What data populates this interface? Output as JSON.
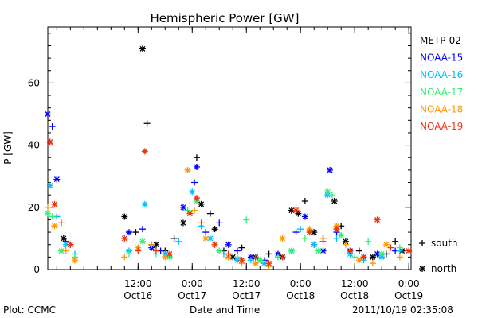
{
  "page": {
    "footer_left": "Plot: CCMC",
    "footer_center": "Date and Time",
    "footer_right": "2011/10/19 02:35:08"
  },
  "chart_data": {
    "type": "scatter",
    "title": "Hemispheric Power [GW]",
    "ylabel": "P [GW]",
    "xlabel": "Date and Time",
    "xlim": [
      "2011-10-15T16:00",
      "2011-10-19T00:30"
    ],
    "ylim": [
      0,
      78
    ],
    "yticks": [
      0,
      20,
      40,
      60
    ],
    "xticks": [
      {
        "t": "2011-10-16T12:00",
        "time": "12:00",
        "date": "Oct16"
      },
      {
        "t": "2011-10-17T00:00",
        "time": "0:00",
        "date": "Oct17"
      },
      {
        "t": "2011-10-17T12:00",
        "time": "12:00",
        "date": "Oct17"
      },
      {
        "t": "2011-10-18T00:00",
        "time": "0:00",
        "date": "Oct18"
      },
      {
        "t": "2011-10-18T12:00",
        "time": "12:00",
        "date": "Oct18"
      },
      {
        "t": "2011-10-19T00:00",
        "time": "0:00",
        "date": "Oct19"
      }
    ],
    "markers": [
      {
        "symbol": "+",
        "label": "south"
      },
      {
        "symbol": "*",
        "label": "north"
      }
    ],
    "series": [
      {
        "name": "METP-02",
        "color": "#000000",
        "points": [
          [
            "2011-10-15T16:30",
            41,
            "n"
          ],
          [
            "2011-10-15T18:00",
            17,
            "+"
          ],
          [
            "2011-10-15T19:30",
            10,
            "n"
          ],
          [
            "2011-10-15T21:00",
            8,
            "+"
          ],
          [
            "2011-10-16T09:00",
            17,
            "n"
          ],
          [
            "2011-10-16T11:30",
            12,
            "+"
          ],
          [
            "2011-10-16T13:00",
            71,
            "n"
          ],
          [
            "2011-10-16T14:00",
            47,
            "+"
          ],
          [
            "2011-10-16T16:00",
            8,
            "n"
          ],
          [
            "2011-10-16T18:00",
            6,
            "+"
          ],
          [
            "2011-10-16T20:00",
            10,
            "+"
          ],
          [
            "2011-10-16T22:00",
            15,
            "n"
          ],
          [
            "2011-10-17T01:00",
            36,
            "+"
          ],
          [
            "2011-10-17T02:00",
            21,
            "n"
          ],
          [
            "2011-10-17T04:00",
            18,
            "+"
          ],
          [
            "2011-10-17T05:00",
            13,
            "n"
          ],
          [
            "2011-10-17T07:00",
            6,
            "+"
          ],
          [
            "2011-10-17T09:00",
            4,
            "n"
          ],
          [
            "2011-10-17T11:00",
            7,
            "+"
          ],
          [
            "2011-10-17T14:00",
            4,
            "n"
          ],
          [
            "2011-10-17T17:00",
            5,
            "+"
          ],
          [
            "2011-10-17T20:00",
            4,
            "n"
          ],
          [
            "2011-10-17T22:00",
            19,
            "n"
          ],
          [
            "2011-10-17T23:30",
            18,
            "n"
          ],
          [
            "2011-10-18T01:00",
            22,
            "+"
          ],
          [
            "2011-10-18T03:00",
            12,
            "n"
          ],
          [
            "2011-10-18T05:00",
            10,
            "+"
          ],
          [
            "2011-10-18T07:30",
            22,
            "n"
          ],
          [
            "2011-10-18T09:00",
            14,
            "+"
          ],
          [
            "2011-10-18T10:00",
            9,
            "n"
          ],
          [
            "2011-10-18T13:00",
            6,
            "+"
          ],
          [
            "2011-10-18T16:00",
            4,
            "n"
          ],
          [
            "2011-10-18T19:00",
            5,
            "+"
          ],
          [
            "2011-10-18T21:00",
            9,
            "+"
          ],
          [
            "2011-10-18T22:30",
            6,
            "n"
          ]
        ]
      },
      {
        "name": "NOAA-15",
        "color": "#0000ff",
        "points": [
          [
            "2011-10-15T16:00",
            50,
            "n"
          ],
          [
            "2011-10-15T17:00",
            46,
            "+"
          ],
          [
            "2011-10-15T18:00",
            29,
            "n"
          ],
          [
            "2011-10-15T20:00",
            9,
            "+"
          ],
          [
            "2011-10-16T10:00",
            12,
            "n"
          ],
          [
            "2011-10-16T13:00",
            13,
            "+"
          ],
          [
            "2011-10-16T15:00",
            7,
            "n"
          ],
          [
            "2011-10-16T17:00",
            6,
            "+"
          ],
          [
            "2011-10-16T22:00",
            20,
            "n"
          ],
          [
            "2011-10-17T00:30",
            28,
            "+"
          ],
          [
            "2011-10-17T01:00",
            33,
            "n"
          ],
          [
            "2011-10-17T03:00",
            12,
            "+"
          ],
          [
            "2011-10-17T06:00",
            15,
            "+"
          ],
          [
            "2011-10-17T08:00",
            8,
            "n"
          ],
          [
            "2011-10-17T10:00",
            6,
            "+"
          ],
          [
            "2011-10-17T13:00",
            4,
            "n"
          ],
          [
            "2011-10-17T16:00",
            3,
            "+"
          ],
          [
            "2011-10-17T19:00",
            5,
            "n"
          ],
          [
            "2011-10-17T23:00",
            12,
            "+"
          ],
          [
            "2011-10-18T01:00",
            17,
            "n"
          ],
          [
            "2011-10-18T03:00",
            8,
            "+"
          ],
          [
            "2011-10-18T05:00",
            6,
            "n"
          ],
          [
            "2011-10-18T06:30",
            32,
            "n"
          ],
          [
            "2011-10-18T08:00",
            12,
            "+"
          ],
          [
            "2011-10-18T11:00",
            6,
            "n"
          ],
          [
            "2011-10-18T14:00",
            4,
            "+"
          ],
          [
            "2011-10-18T17:00",
            5,
            "n"
          ],
          [
            "2011-10-18T21:00",
            6,
            "+"
          ]
        ]
      },
      {
        "name": "NOAA-16",
        "color": "#00bfff",
        "points": [
          [
            "2011-10-15T16:30",
            27,
            "n"
          ],
          [
            "2011-10-15T18:00",
            17,
            "+"
          ],
          [
            "2011-10-15T20:00",
            8,
            "n"
          ],
          [
            "2011-10-15T22:00",
            5,
            "+"
          ],
          [
            "2011-10-16T10:00",
            6,
            "n"
          ],
          [
            "2011-10-16T13:30",
            21,
            "n"
          ],
          [
            "2011-10-16T15:00",
            8,
            "+"
          ],
          [
            "2011-10-16T18:00",
            5,
            "n"
          ],
          [
            "2011-10-16T21:00",
            9,
            "+"
          ],
          [
            "2011-10-17T00:00",
            25,
            "n"
          ],
          [
            "2011-10-17T02:00",
            14,
            "+"
          ],
          [
            "2011-10-17T04:00",
            10,
            "n"
          ],
          [
            "2011-10-17T07:00",
            5,
            "+"
          ],
          [
            "2011-10-17T10:00",
            3,
            "n"
          ],
          [
            "2011-10-17T13:00",
            3,
            "+"
          ],
          [
            "2011-10-17T16:00",
            2,
            "n"
          ],
          [
            "2011-10-17T19:00",
            4,
            "+"
          ],
          [
            "2011-10-17T22:00",
            6,
            "n"
          ],
          [
            "2011-10-18T00:00",
            13,
            "+"
          ],
          [
            "2011-10-18T03:00",
            8,
            "n"
          ],
          [
            "2011-10-18T06:00",
            24,
            "n"
          ],
          [
            "2011-10-18T08:00",
            10,
            "+"
          ],
          [
            "2011-10-18T11:00",
            5,
            "n"
          ],
          [
            "2011-10-18T14:00",
            3,
            "+"
          ],
          [
            "2011-10-18T18:00",
            4,
            "n"
          ],
          [
            "2011-10-18T22:00",
            6,
            "+"
          ]
        ]
      },
      {
        "name": "NOAA-17",
        "color": "#33ee77",
        "points": [
          [
            "2011-10-15T16:00",
            18,
            "n"
          ],
          [
            "2011-10-15T17:00",
            17,
            "+"
          ],
          [
            "2011-10-15T19:00",
            6,
            "n"
          ],
          [
            "2011-10-15T22:00",
            4,
            "+"
          ],
          [
            "2011-10-16T10:00",
            5,
            "+"
          ],
          [
            "2011-10-16T13:00",
            9,
            "n"
          ],
          [
            "2011-10-16T16:00",
            5,
            "+"
          ],
          [
            "2011-10-16T19:00",
            4,
            "n"
          ],
          [
            "2011-10-16T23:00",
            19,
            "+"
          ],
          [
            "2011-10-17T01:00",
            22,
            "n"
          ],
          [
            "2011-10-17T03:00",
            10,
            "+"
          ],
          [
            "2011-10-17T06:00",
            6,
            "n"
          ],
          [
            "2011-10-17T10:00",
            4,
            "+"
          ],
          [
            "2011-10-17T12:00",
            16,
            "+"
          ],
          [
            "2011-10-17T15:00",
            3,
            "n"
          ],
          [
            "2011-10-17T19:00",
            4,
            "+"
          ],
          [
            "2011-10-17T22:00",
            6,
            "n"
          ],
          [
            "2011-10-18T01:00",
            10,
            "+"
          ],
          [
            "2011-10-18T04:00",
            6,
            "n"
          ],
          [
            "2011-10-18T06:00",
            25,
            "n"
          ],
          [
            "2011-10-18T07:00",
            24,
            "+"
          ],
          [
            "2011-10-18T09:00",
            11,
            "n"
          ],
          [
            "2011-10-18T12:00",
            4,
            "+"
          ],
          [
            "2011-10-18T15:00",
            9,
            "+"
          ],
          [
            "2011-10-18T18:00",
            5,
            "n"
          ],
          [
            "2011-10-18T22:00",
            7,
            "+"
          ]
        ]
      },
      {
        "name": "NOAA-18",
        "color": "#ff9900",
        "points": [
          [
            "2011-10-15T16:00",
            20,
            "+"
          ],
          [
            "2011-10-15T17:30",
            14,
            "n"
          ],
          [
            "2011-10-15T20:00",
            6,
            "+"
          ],
          [
            "2011-10-15T22:00",
            3,
            "n"
          ],
          [
            "2011-10-16T09:00",
            4,
            "+"
          ],
          [
            "2011-10-16T12:00",
            7,
            "n"
          ],
          [
            "2011-10-16T15:00",
            8,
            "+"
          ],
          [
            "2011-10-16T18:00",
            4,
            "n"
          ],
          [
            "2011-10-16T23:00",
            32,
            "n"
          ],
          [
            "2011-10-17T00:30",
            19,
            "+"
          ],
          [
            "2011-10-17T03:00",
            10,
            "n"
          ],
          [
            "2011-10-17T05:00",
            8,
            "+"
          ],
          [
            "2011-10-17T08:00",
            4,
            "n"
          ],
          [
            "2011-10-17T11:00",
            2,
            "+"
          ],
          [
            "2011-10-17T14:00",
            2,
            "n"
          ],
          [
            "2011-10-17T17:00",
            1,
            "+"
          ],
          [
            "2011-10-17T20:00",
            10,
            "n"
          ],
          [
            "2011-10-17T23:00",
            20,
            "+"
          ],
          [
            "2011-10-18T02:00",
            13,
            "n"
          ],
          [
            "2011-10-18T05:00",
            10,
            "+"
          ],
          [
            "2011-10-18T08:00",
            14,
            "n"
          ],
          [
            "2011-10-18T10:00",
            8,
            "+"
          ],
          [
            "2011-10-18T13:00",
            3,
            "n"
          ],
          [
            "2011-10-18T16:00",
            2,
            "+"
          ],
          [
            "2011-10-18T19:00",
            8,
            "n"
          ],
          [
            "2011-10-18T22:00",
            4,
            "+"
          ]
        ]
      },
      {
        "name": "NOAA-19",
        "color": "#ee3311",
        "points": [
          [
            "2011-10-15T16:30",
            41,
            "n"
          ],
          [
            "2011-10-15T17:30",
            21,
            "n"
          ],
          [
            "2011-10-15T19:00",
            15,
            "+"
          ],
          [
            "2011-10-15T21:00",
            8,
            "n"
          ],
          [
            "2011-10-16T09:00",
            10,
            "n"
          ],
          [
            "2011-10-16T12:00",
            6,
            "+"
          ],
          [
            "2011-10-16T13:30",
            38,
            "n"
          ],
          [
            "2011-10-16T16:00",
            6,
            "+"
          ],
          [
            "2011-10-16T19:00",
            5,
            "n"
          ],
          [
            "2011-10-16T23:30",
            18,
            "n"
          ],
          [
            "2011-10-17T01:00",
            23,
            "n"
          ],
          [
            "2011-10-17T02:00",
            15,
            "+"
          ],
          [
            "2011-10-17T05:00",
            8,
            "n"
          ],
          [
            "2011-10-17T08:00",
            5,
            "+"
          ],
          [
            "2011-10-17T11:00",
            3,
            "n"
          ],
          [
            "2011-10-17T14:00",
            4,
            "+"
          ],
          [
            "2011-10-17T17:00",
            2,
            "n"
          ],
          [
            "2011-10-17T20:00",
            4,
            "+"
          ],
          [
            "2011-10-17T23:00",
            19,
            "n"
          ],
          [
            "2011-10-18T02:00",
            12,
            "n"
          ],
          [
            "2011-10-18T05:00",
            9,
            "+"
          ],
          [
            "2011-10-18T08:00",
            13,
            "n"
          ],
          [
            "2011-10-18T11:00",
            6,
            "+"
          ],
          [
            "2011-10-18T14:00",
            4,
            "n"
          ],
          [
            "2011-10-18T17:00",
            16,
            "n"
          ],
          [
            "2011-10-18T20:00",
            7,
            "+"
          ],
          [
            "2011-10-19T00:00",
            6,
            "n"
          ]
        ]
      }
    ]
  }
}
